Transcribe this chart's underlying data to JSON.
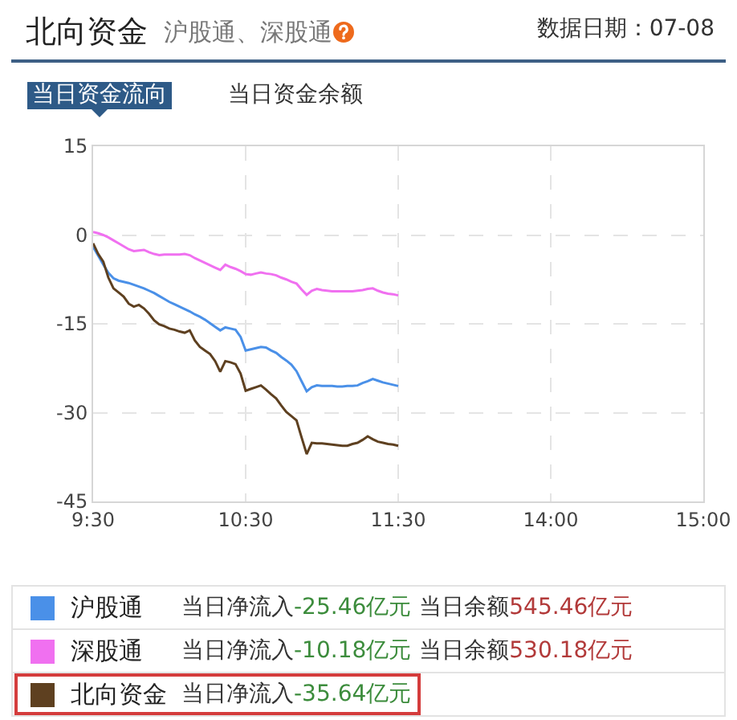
{
  "chart_data": {
    "type": "line",
    "title": "北向资金",
    "subtitle": "沪股通、深股通",
    "annotations": [
      "数据日期：07-08",
      "当日资金流向",
      "当日资金余额",
      "当日净流入",
      "-25.46亿元",
      "当日余额",
      "545.46亿元",
      "当日净流入",
      "-10.18亿元",
      "当日余额",
      "530.18亿元",
      "当日净流入",
      "-35.64亿元"
    ],
    "categories": [
      "9:30",
      null,
      null,
      null,
      null,
      null,
      null,
      null,
      null,
      null,
      null,
      null,
      null,
      null,
      null,
      null,
      null,
      null,
      null,
      null,
      null,
      null,
      null,
      null,
      null,
      null,
      null,
      null,
      null,
      null,
      "10:30",
      null,
      null,
      null,
      null,
      null,
      null,
      null,
      null,
      null,
      null,
      null,
      null,
      null,
      null,
      null,
      null,
      null,
      null,
      null,
      null,
      null,
      null,
      null,
      null,
      null,
      null,
      null,
      null,
      null,
      "11:30",
      null,
      null,
      null,
      null,
      null,
      null,
      null,
      null,
      null,
      null,
      null,
      null,
      null,
      null,
      null,
      null,
      null,
      null,
      null,
      null,
      null,
      null,
      null,
      null,
      null,
      null,
      null,
      null,
      null,
      "14:00",
      null,
      null,
      null,
      null,
      null,
      null,
      null,
      null,
      null,
      null,
      null,
      null,
      null,
      null,
      null,
      null,
      null,
      null,
      null,
      null,
      null,
      null,
      null,
      null,
      null,
      null,
      null,
      null,
      null,
      "15:00"
    ],
    "ylim": [
      -45,
      15
    ],
    "yticks": [
      -45,
      -30,
      -15,
      0,
      15
    ],
    "grid": true,
    "legend": "bottom",
    "line_style": "solid",
    "series": [
      {
        "name": "沪股通",
        "color": "#4a90e8",
        "values": [
          -2.0,
          -3.5,
          -5.0,
          -6.4,
          -7.3,
          -7.7,
          -7.9,
          -8.1,
          -8.4,
          -8.7,
          -9.0,
          -9.4,
          -9.8,
          -10.3,
          -10.8,
          -11.3,
          -11.7,
          -12.1,
          -12.5,
          -12.9,
          -13.4,
          -13.8,
          -14.3,
          -14.9,
          -15.5,
          -16.1,
          -15.6,
          -15.8,
          -16.0,
          -17.2,
          -19.5,
          -19.3,
          -19.1,
          -18.9,
          -19.0,
          -19.5,
          -19.9,
          -20.6,
          -21.2,
          -21.9,
          -23.0,
          -24.7,
          -26.4,
          -25.7,
          -25.4,
          -25.5,
          -25.5,
          -25.5,
          -25.6,
          -25.6,
          -25.5,
          -25.5,
          -25.4,
          -25.0,
          -24.7,
          -24.3,
          -24.6,
          -24.9,
          -25.1,
          -25.3,
          -25.5,
          null,
          null,
          null,
          null,
          null,
          null,
          null,
          null,
          null,
          null,
          null,
          null,
          null,
          null,
          null,
          null,
          null,
          null,
          null,
          null,
          null,
          null,
          null,
          null,
          null,
          null,
          null,
          null,
          null,
          null,
          null,
          null,
          null,
          null,
          null,
          null,
          null,
          null,
          null,
          null,
          null,
          null,
          null,
          null,
          null,
          null,
          null,
          null,
          null,
          null,
          null,
          null,
          null,
          null,
          null,
          null,
          null,
          null,
          null,
          null
        ]
      },
      {
        "name": "深股通",
        "color": "#f070f0",
        "values": [
          0.5,
          0.3,
          0,
          -0.4,
          -0.9,
          -1.4,
          -1.9,
          -2.4,
          -2.7,
          -2.6,
          -2.5,
          -2.9,
          -3.2,
          -3.4,
          -3.3,
          -3.3,
          -3.3,
          -3.3,
          -3.2,
          -3.4,
          -3.9,
          -4.3,
          -4.7,
          -5.1,
          -5.5,
          -5.9,
          -5.0,
          -5.4,
          -5.7,
          -6.1,
          -6.6,
          -6.7,
          -6.5,
          -6.3,
          -6.5,
          -6.6,
          -6.8,
          -7.2,
          -7.5,
          -7.9,
          -8.2,
          -9.2,
          -10.1,
          -9.4,
          -9.1,
          -9.3,
          -9.4,
          -9.5,
          -9.5,
          -9.5,
          -9.5,
          -9.5,
          -9.4,
          -9.3,
          -9.1,
          -9.0,
          -9.4,
          -9.7,
          -9.9,
          -10.0,
          -10.2,
          null,
          null,
          null,
          null,
          null,
          null,
          null,
          null,
          null,
          null,
          null,
          null,
          null,
          null,
          null,
          null,
          null,
          null,
          null,
          null,
          null,
          null,
          null,
          null,
          null,
          null,
          null,
          null,
          null,
          null,
          null,
          null,
          null,
          null,
          null,
          null,
          null,
          null,
          null,
          null,
          null,
          null,
          null,
          null,
          null,
          null,
          null,
          null,
          null,
          null,
          null,
          null,
          null,
          null,
          null,
          null,
          null,
          null,
          null,
          null
        ]
      },
      {
        "name": "北向资金",
        "color": "#5e4020",
        "values": [
          -1.4,
          -3.2,
          -4.5,
          -7.2,
          -9.0,
          -9.7,
          -10.4,
          -11.6,
          -12.1,
          -11.8,
          -12.4,
          -13.3,
          -14.4,
          -15.1,
          -15.4,
          -15.8,
          -16.0,
          -16.3,
          -16.5,
          -16.1,
          -17.8,
          -18.9,
          -19.5,
          -20.1,
          -21.3,
          -23.1,
          -21.3,
          -21.5,
          -21.8,
          -23.4,
          -26.3,
          -26.0,
          -25.7,
          -25.4,
          -26.1,
          -26.9,
          -27.6,
          -28.8,
          -29.9,
          -30.6,
          -31.3,
          -34.2,
          -37.0,
          -35.1,
          -35.2,
          -35.2,
          -35.3,
          -35.4,
          -35.5,
          -35.6,
          -35.6,
          -35.3,
          -35.1,
          -34.6,
          -34.0,
          -34.5,
          -34.9,
          -35.1,
          -35.3,
          -35.4,
          -35.6,
          null,
          null,
          null,
          null,
          null,
          null,
          null,
          null,
          null,
          null,
          null,
          null,
          null,
          null,
          null,
          null,
          null,
          null,
          null,
          null,
          null,
          null,
          null,
          null,
          null,
          null,
          null,
          null,
          null,
          null,
          null,
          null,
          null,
          null,
          null,
          null,
          null,
          null,
          null,
          null,
          null,
          null,
          null,
          null,
          null,
          null,
          null,
          null,
          null,
          null,
          null,
          null,
          null,
          null,
          null,
          null,
          null,
          null,
          null,
          null
        ]
      }
    ]
  }
}
